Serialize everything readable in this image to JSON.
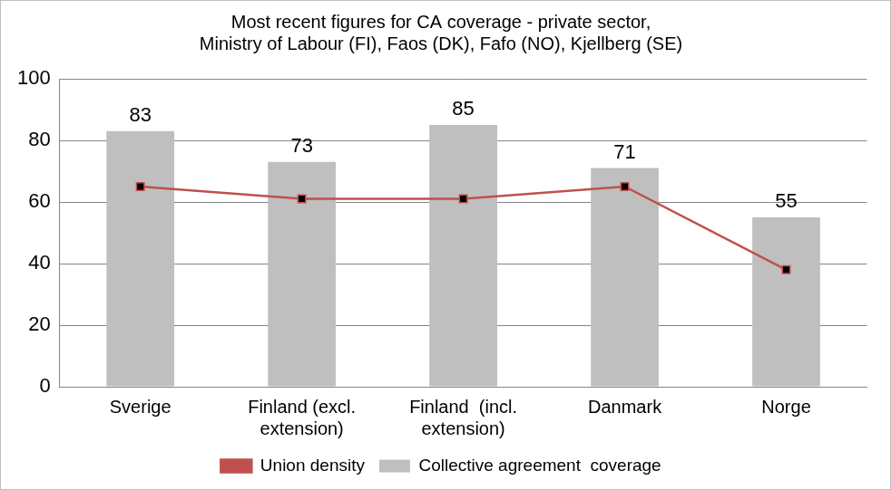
{
  "chart_data": {
    "type": "bar",
    "title": [
      "Most recent figures for CA coverage - private sector,",
      "Ministry of Labour (FI), Faos (DK), Fafo (NO), Kjellberg (SE)"
    ],
    "categories": [
      "Sverige",
      [
        "Finland (excl.",
        "extension)"
      ],
      [
        "Finland  (incl.",
        "extension)"
      ],
      "Danmark",
      "Norge"
    ],
    "series": [
      {
        "name": "Collective agreement  coverage",
        "type": "bar",
        "color": "#bfbfbf",
        "values": [
          83,
          73,
          85,
          71,
          55
        ],
        "data_labels": true
      },
      {
        "name": "Union density",
        "type": "line",
        "color": "#c0504d",
        "marker": "square",
        "values": [
          65,
          61,
          61,
          65,
          38
        ]
      }
    ],
    "ylim": [
      0,
      100
    ],
    "yticks": [
      0,
      20,
      40,
      60,
      80,
      100
    ],
    "grid": true,
    "legend": "bottom"
  }
}
